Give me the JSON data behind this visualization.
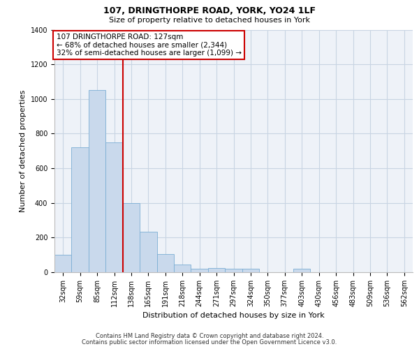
{
  "title1": "107, DRINGTHORPE ROAD, YORK, YO24 1LF",
  "title2": "Size of property relative to detached houses in York",
  "xlabel": "Distribution of detached houses by size in York",
  "ylabel": "Number of detached properties",
  "categories": [
    "32sqm",
    "59sqm",
    "85sqm",
    "112sqm",
    "138sqm",
    "165sqm",
    "191sqm",
    "218sqm",
    "244sqm",
    "271sqm",
    "297sqm",
    "324sqm",
    "350sqm",
    "377sqm",
    "403sqm",
    "430sqm",
    "456sqm",
    "483sqm",
    "509sqm",
    "536sqm",
    "562sqm"
  ],
  "values": [
    100,
    720,
    1050,
    750,
    400,
    235,
    105,
    45,
    20,
    25,
    20,
    20,
    0,
    0,
    20,
    0,
    0,
    0,
    0,
    0,
    0
  ],
  "bar_color": "#c9d9ec",
  "bar_edge_color": "#7baed4",
  "grid_color": "#c8d4e3",
  "background_color": "#eef2f8",
  "vline_color": "#cc0000",
  "annotation_text": "107 DRINGTHORPE ROAD: 127sqm\n← 68% of detached houses are smaller (2,344)\n32% of semi-detached houses are larger (1,099) →",
  "annotation_box_edgecolor": "#cc0000",
  "annotation_fill": "#ffffff",
  "footer1": "Contains HM Land Registry data © Crown copyright and database right 2024.",
  "footer2": "Contains public sector information licensed under the Open Government Licence v3.0.",
  "ylim": [
    0,
    1400
  ],
  "yticks": [
    0,
    200,
    400,
    600,
    800,
    1000,
    1200,
    1400
  ],
  "property_bin_index": 3,
  "bar_width": 1.0,
  "title1_fontsize": 9,
  "title2_fontsize": 8,
  "ylabel_fontsize": 8,
  "xlabel_fontsize": 8,
  "tick_fontsize": 7,
  "footer_fontsize": 6
}
